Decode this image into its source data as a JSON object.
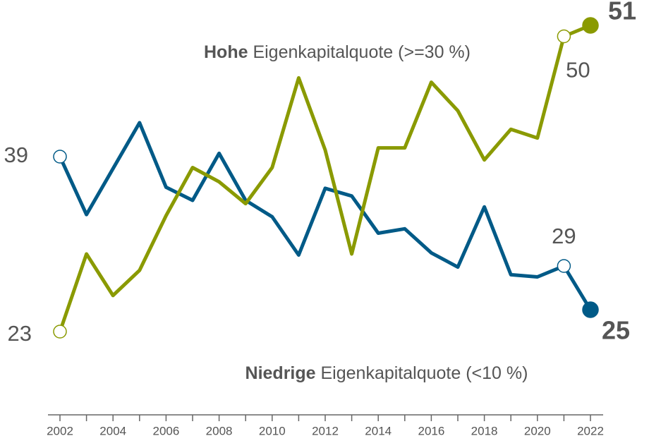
{
  "chart_data": {
    "type": "line",
    "x": [
      2002,
      2003,
      2004,
      2005,
      2006,
      2007,
      2008,
      2009,
      2010,
      2011,
      2012,
      2013,
      2014,
      2015,
      2016,
      2017,
      2018,
      2019,
      2020,
      2021,
      2022
    ],
    "series": [
      {
        "name": "Niedrige Eigenkapitalquote (<10 %)",
        "color": "#005a87",
        "values": [
          39,
          33.7,
          37.9,
          42.1,
          36.2,
          35.0,
          39.3,
          35.0,
          33.5,
          30.0,
          36.1,
          35.4,
          32.0,
          32.4,
          30.2,
          28.9,
          34.4,
          28.2,
          28.0,
          29,
          25
        ]
      },
      {
        "name": "Hohe Eigenkapitalquote (>=30 %)",
        "color": "#8a9a00",
        "values": [
          23,
          30.1,
          26.3,
          28.6,
          33.6,
          38.0,
          36.7,
          34.7,
          38.0,
          46.2,
          39.6,
          30.1,
          39.8,
          39.8,
          45.8,
          43.2,
          38.7,
          41.5,
          40.7,
          50,
          51
        ]
      }
    ],
    "xlim": [
      2002,
      2022
    ],
    "xticks": [
      2002,
      2004,
      2006,
      2008,
      2010,
      2012,
      2014,
      2016,
      2018,
      2020,
      2022
    ],
    "ylim": [
      20,
      55
    ]
  }
}
